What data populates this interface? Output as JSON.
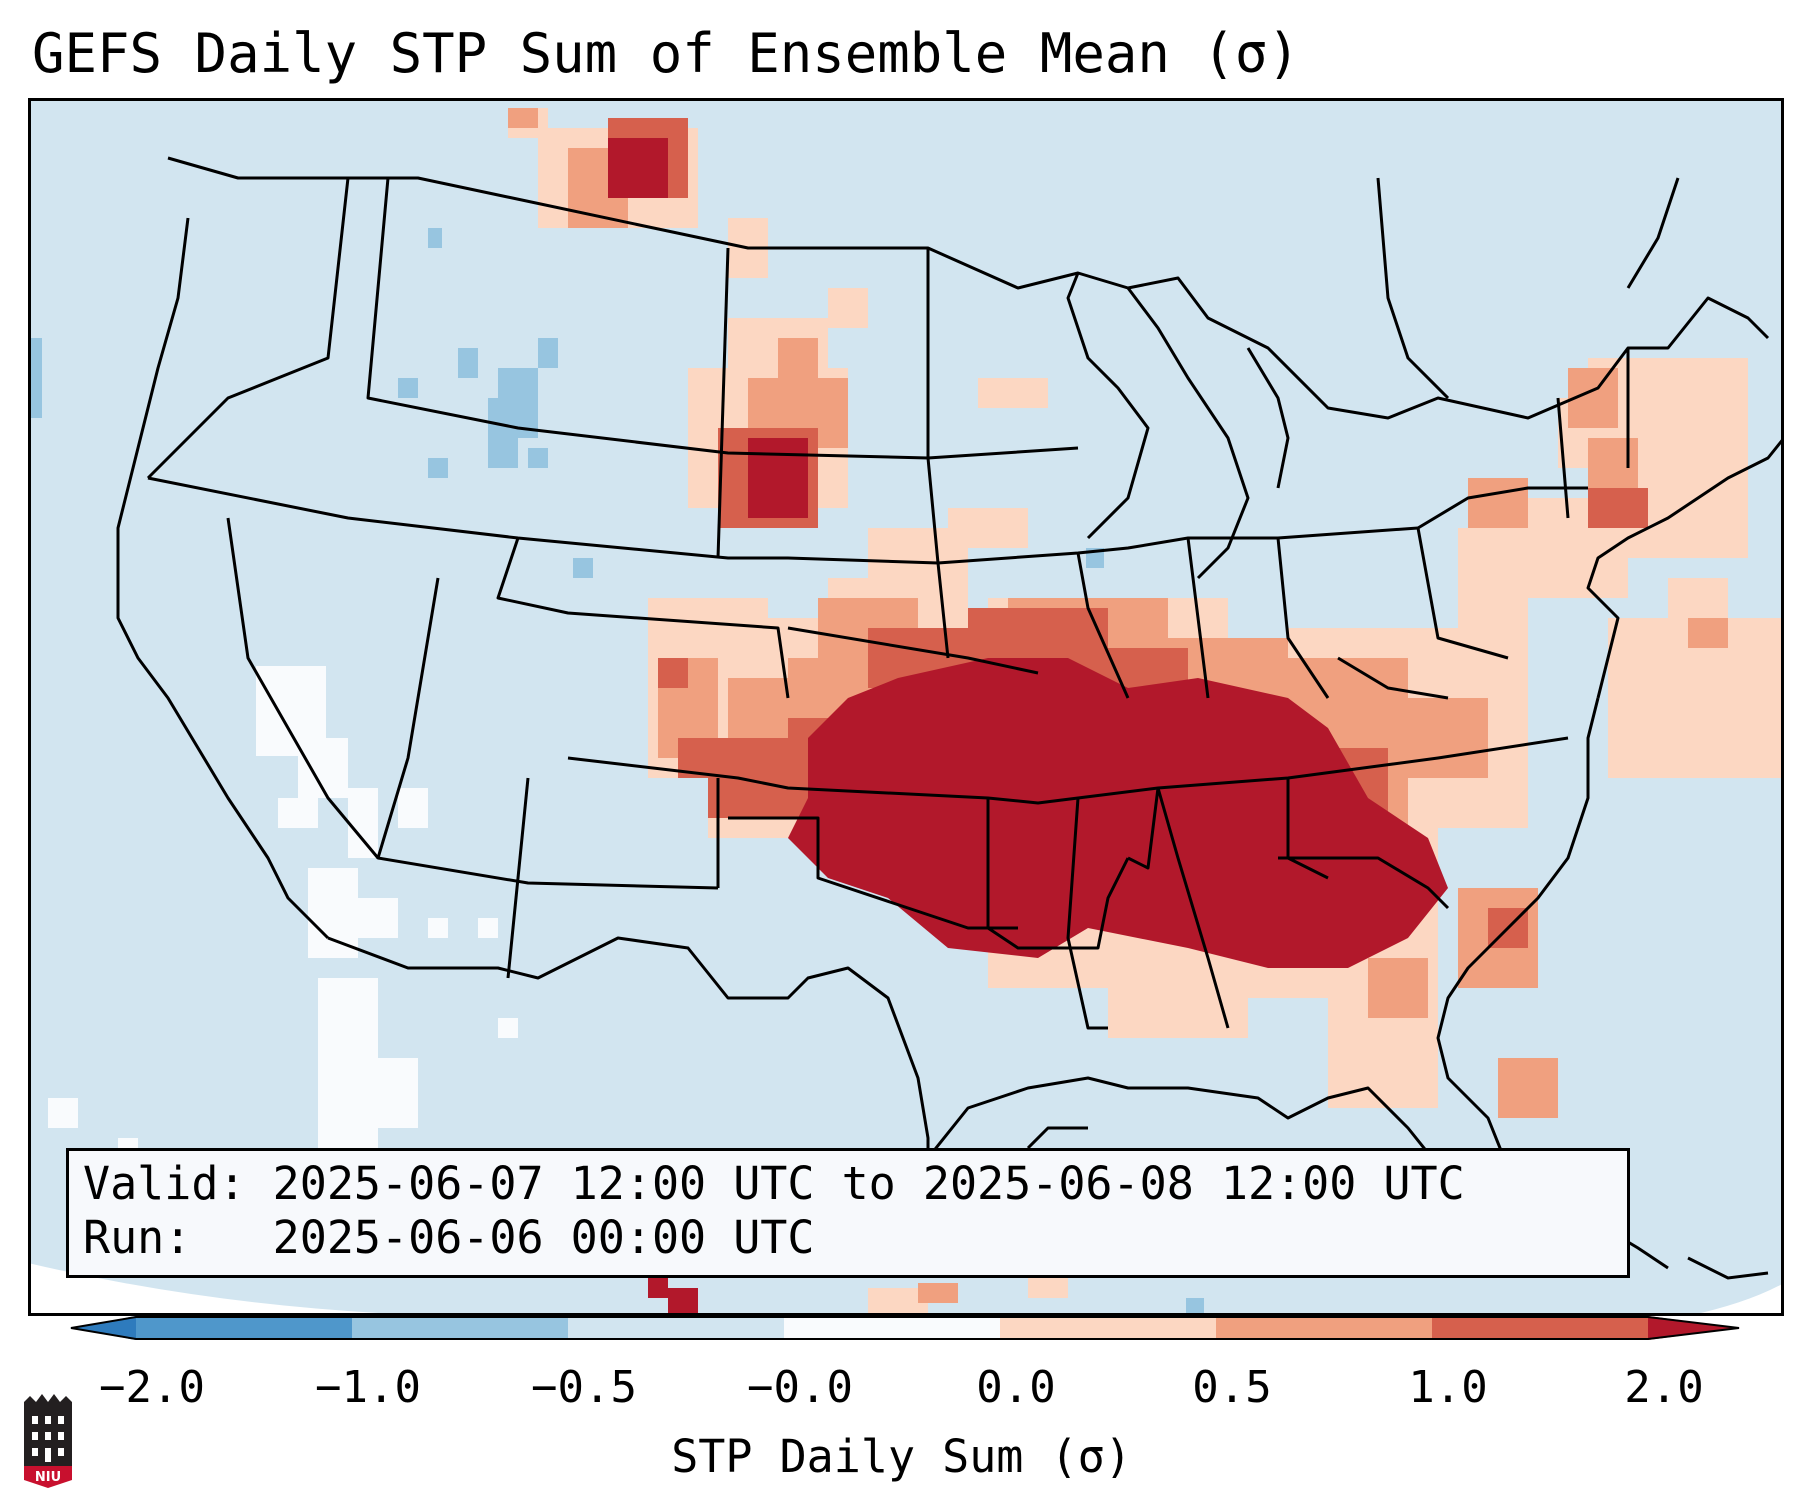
{
  "title": "GEFS Daily STP Sum of Ensemble Mean (σ)",
  "valid_line": "Valid: 2025-06-07 12:00 UTC to 2025-06-08 12:00 UTC",
  "run_line": "Run:   2025-06-06 00:00 UTC",
  "colorbar": {
    "label": "STP Daily Sum (σ)",
    "ticks": [
      "−2.0",
      "−1.0",
      "−0.5",
      "−0.0",
      "0.0",
      "0.5",
      "1.0",
      "2.0"
    ],
    "colors": [
      "#2e7bbd",
      "#4f97cb",
      "#97c5e0",
      "#d2e5f0",
      "#f9fbfd",
      "#fcd7c2",
      "#f0a07f",
      "#d6604d",
      "#b2182b"
    ],
    "extend": "both"
  },
  "map": {
    "background_color": "#d2e5f0",
    "region": "Contiguous United States",
    "max_anomaly_region": "Southern Plains to Southeast",
    "max_anomaly_color": "#b2182b"
  },
  "logo": {
    "text": "NIU"
  }
}
